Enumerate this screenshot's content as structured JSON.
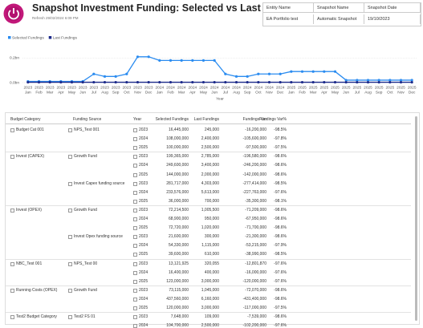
{
  "header": {
    "title": "Snapshot Investment Funding: Selected vs Last",
    "refresh": "Refresh 29/02/2024 6:09 PM"
  },
  "info_table": {
    "headers": [
      "Entity Name",
      "Snapshot Name",
      "Snapshot Date"
    ],
    "row": [
      "EA Portfolio test",
      "Automatic Snapshot",
      "19/10/2023"
    ]
  },
  "chart_data": {
    "type": "line",
    "legend": "top-left",
    "x_label": "Year",
    "grid": true,
    "markers": true,
    "categories": [
      "Jan",
      "Feb",
      "Mar",
      "Apr",
      "May",
      "Jun",
      "Jul",
      "Aug",
      "Sep",
      "Oct",
      "Nov",
      "Dec",
      "Jan",
      "Feb",
      "Mar",
      "Apr",
      "May",
      "Jun",
      "Jul",
      "Aug",
      "Sep",
      "Oct",
      "Nov",
      "Dec",
      "Jan",
      "Feb",
      "Mar",
      "Apr",
      "May",
      "Jun",
      "Jul",
      "Aug",
      "Sep",
      "Oct",
      "Nov",
      "Dec"
    ],
    "years": [
      "2023",
      "2023",
      "2023",
      "2023",
      "2023",
      "2023",
      "2023",
      "2023",
      "2023",
      "2023",
      "2023",
      "2023",
      "2024",
      "2024",
      "2024",
      "2024",
      "2024",
      "2024",
      "2024",
      "2024",
      "2024",
      "2024",
      "2024",
      "2024",
      "2025",
      "2025",
      "2025",
      "2025",
      "2025",
      "2025",
      "2025",
      "2025",
      "2025",
      "2025",
      "2025",
      "2025"
    ],
    "ylim": [
      0,
      0.3
    ],
    "yticks": [
      {
        "value": 0,
        "label": "0.0bn"
      },
      {
        "value": 0.2,
        "label": "0.2bn"
      }
    ],
    "series": [
      {
        "name": "Selected Fundings",
        "color": "#2b8cf0",
        "values": [
          0.01,
          0.01,
          0.01,
          0.01,
          0.01,
          0.01,
          0.07,
          0.05,
          0.05,
          0.07,
          0.21,
          0.21,
          0.18,
          0.18,
          0.18,
          0.18,
          0.18,
          0.18,
          0.07,
          0.05,
          0.05,
          0.07,
          0.07,
          0.07,
          0.09,
          0.09,
          0.09,
          0.09,
          0.09,
          0.02,
          0.02,
          0.02,
          0.02,
          0.02,
          0.02,
          0.02
        ]
      },
      {
        "name": "Last Fundings",
        "color": "#1c2a8a",
        "values": [
          0.003,
          0.003,
          0.003,
          0.003,
          0.003,
          0.003,
          0.003,
          0.003,
          0.003,
          0.003,
          0.003,
          0.003,
          0.003,
          0.003,
          0.003,
          0.003,
          0.003,
          0.003,
          0.003,
          0.003,
          0.003,
          0.003,
          0.003,
          0.003,
          0.003,
          0.003,
          0.003,
          0.003,
          0.003,
          0.003,
          0.003,
          0.003,
          0.003,
          0.003,
          0.003,
          0.003
        ]
      }
    ]
  },
  "table": {
    "headers": [
      "Budget Category",
      "Funding Source",
      "Year",
      "Selected Fundings",
      "Last Fundings",
      "Fundings Var",
      "Fundings Var%"
    ],
    "categories": [
      {
        "name": "Budget Cat 001",
        "sources": [
          {
            "name": "NPS_Test 001",
            "years": [
              [
                "2023",
                "16,445,000",
                "245,000",
                "-16,200,000",
                "-98.5%"
              ],
              [
                "2024",
                "108,000,000",
                "2,400,000",
                "-105,600,000",
                "-97.8%"
              ],
              [
                "2025",
                "100,000,000",
                "2,500,000",
                "-97,500,000",
                "-97.5%"
              ]
            ]
          }
        ]
      },
      {
        "name": "Invest (CAPEX)",
        "sources": [
          {
            "name": "Growth Fund",
            "years": [
              [
                "2023",
                "199,365,000",
                "2,785,000",
                "-196,580,000",
                "-98.6%"
              ],
              [
                "2024",
                "249,600,000",
                "3,400,000",
                "-246,200,000",
                "-98.6%"
              ],
              [
                "2025",
                "144,000,000",
                "2,000,000",
                "-142,000,000",
                "-98.6%"
              ]
            ]
          },
          {
            "name": "Invest Capex funding source",
            "years": [
              [
                "2023",
                "281,717,000",
                "4,303,000",
                "-277,414,000",
                "-98.5%"
              ],
              [
                "2024",
                "233,576,000",
                "5,613,000",
                "-227,763,000",
                "-97.6%"
              ],
              [
                "2025",
                "36,000,000",
                "700,000",
                "-35,300,000",
                "-98.1%"
              ]
            ]
          }
        ]
      },
      {
        "name": "Invest (OPEX)",
        "sources": [
          {
            "name": "Growth Fund",
            "years": [
              [
                "2023",
                "72,214,500",
                "1,005,500",
                "-71,209,000",
                "-98.6%"
              ],
              [
                "2024",
                "68,900,000",
                "950,000",
                "-67,950,000",
                "-98.6%"
              ],
              [
                "2025",
                "72,720,000",
                "1,020,000",
                "-71,700,000",
                "-98.6%"
              ]
            ]
          },
          {
            "name": "Invest Opex funding source",
            "years": [
              [
                "2023",
                "21,600,000",
                "300,000",
                "-21,300,000",
                "-98.6%"
              ],
              [
                "2024",
                "54,330,000",
                "1,115,000",
                "-53,215,000",
                "-97.9%"
              ],
              [
                "2025",
                "39,600,000",
                "610,000",
                "-38,990,000",
                "-98.5%"
              ]
            ]
          }
        ]
      },
      {
        "name": "NBC_Test 001",
        "sources": [
          {
            "name": "NPS_Test 00",
            "years": [
              [
                "2023",
                "13,121,925",
                "320,055",
                "-12,801,870",
                "-97.6%"
              ],
              [
                "2024",
                "16,400,000",
                "400,000",
                "-16,000,000",
                "-97.6%"
              ],
              [
                "2025",
                "123,000,000",
                "3,000,000",
                "-120,000,000",
                "-97.6%"
              ]
            ]
          }
        ]
      },
      {
        "name": "Running Costs (OPEX)",
        "sources": [
          {
            "name": "Growth Fund",
            "years": [
              [
                "2023",
                "73,115,000",
                "1,045,000",
                "-72,070,000",
                "-98.6%"
              ],
              [
                "2024",
                "437,560,000",
                "6,160,000",
                "-431,400,000",
                "-98.6%"
              ],
              [
                "2025",
                "120,000,000",
                "3,000,000",
                "-117,000,000",
                "-97.5%"
              ]
            ]
          }
        ]
      },
      {
        "name": "Test2 Budget Category",
        "sources": [
          {
            "name": "Test2 FS 01",
            "years": [
              [
                "2023",
                "7,648,000",
                "109,000",
                "-7,539,000",
                "-98.6%"
              ],
              [
                "2024",
                "104,700,000",
                "2,500,000",
                "-102,200,000",
                "-97.6%"
              ]
            ]
          }
        ]
      }
    ]
  }
}
